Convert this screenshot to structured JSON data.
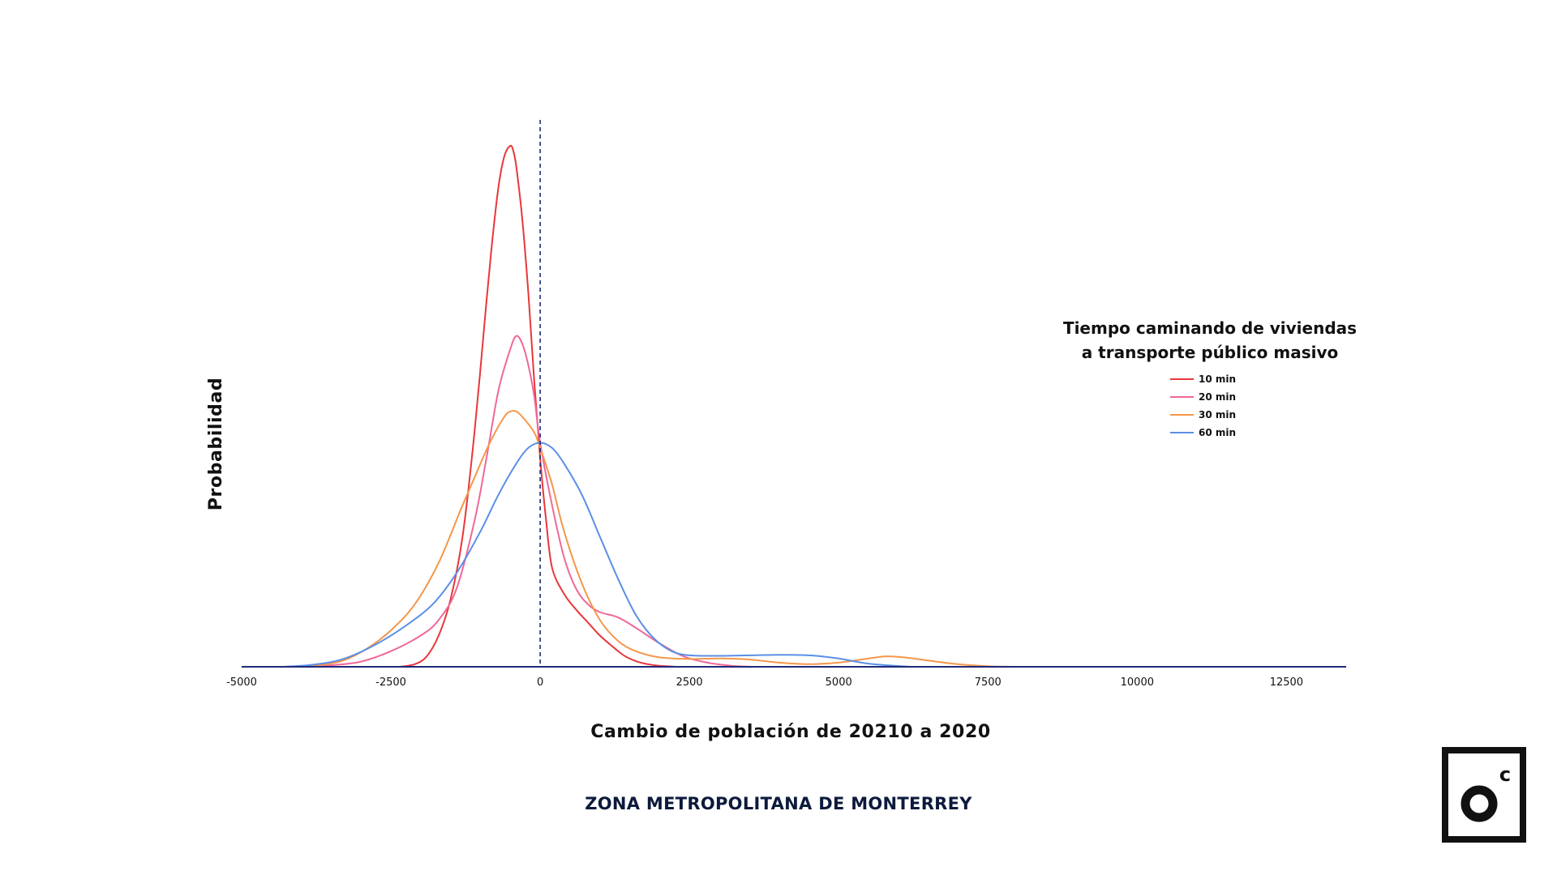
{
  "chart_data": {
    "type": "line",
    "subtype": "density",
    "xlabel": "Cambio de población de 20210 a 2020",
    "ylabel": "Probabilidad",
    "xlim": [
      -5000,
      13500
    ],
    "ylim": [
      0,
      1.0
    ],
    "xticks": [
      -5000,
      -2500,
      0,
      2500,
      5000,
      7500,
      10000,
      12500
    ],
    "xtick_labels": [
      "-5000",
      "-2500",
      "0",
      "2500",
      "5000",
      "7500",
      "10000",
      "12500"
    ],
    "reference_line": {
      "x": 0,
      "style": "dashed",
      "color": "#1f2a7a"
    },
    "grid": false,
    "legend": {
      "title_lines": [
        "Tiempo caminando de viviendas",
        "a transporte público masivo"
      ],
      "position": "right"
    },
    "series": [
      {
        "name": "10 min",
        "color": "#e8373b",
        "x": [
          -2350,
          -2100,
          -1900,
          -1700,
          -1500,
          -1300,
          -1100,
          -900,
          -800,
          -700,
          -600,
          -500,
          -450,
          -400,
          -300,
          -200,
          -100,
          0,
          100,
          200,
          400,
          600,
          800,
          1000,
          1200,
          1400,
          1600,
          1800,
          2000,
          2300
        ],
        "y": [
          0,
          0.005,
          0.02,
          0.06,
          0.13,
          0.25,
          0.45,
          0.7,
          0.82,
          0.92,
          0.98,
          1.0,
          0.99,
          0.96,
          0.86,
          0.72,
          0.55,
          0.4,
          0.28,
          0.19,
          0.14,
          0.11,
          0.085,
          0.06,
          0.04,
          0.022,
          0.011,
          0.005,
          0.002,
          0
        ]
      },
      {
        "name": "20 min",
        "color": "#f0679a",
        "x": [
          -4000,
          -3500,
          -3000,
          -2500,
          -2000,
          -1700,
          -1400,
          -1100,
          -900,
          -700,
          -500,
          -400,
          -300,
          -200,
          -100,
          0,
          200,
          400,
          600,
          800,
          1000,
          1300,
          1600,
          2000,
          2400,
          2800,
          3200,
          3550
        ],
        "y": [
          0,
          0.003,
          0.01,
          0.03,
          0.06,
          0.09,
          0.15,
          0.28,
          0.4,
          0.53,
          0.61,
          0.635,
          0.62,
          0.58,
          0.52,
          0.43,
          0.31,
          0.21,
          0.15,
          0.12,
          0.105,
          0.095,
          0.075,
          0.045,
          0.02,
          0.008,
          0.002,
          0
        ]
      },
      {
        "name": "30 min",
        "color": "#f4974a",
        "x": [
          -4100,
          -3700,
          -3300,
          -2900,
          -2500,
          -2100,
          -1700,
          -1300,
          -1000,
          -800,
          -600,
          -500,
          -400,
          -300,
          -100,
          0,
          200,
          400,
          700,
          1000,
          1300,
          1600,
          2000,
          2500,
          3000,
          3500,
          4000,
          4500,
          5000,
          5500,
          5800,
          6100,
          6500,
          7000,
          7500,
          7900
        ],
        "y": [
          0,
          0.003,
          0.012,
          0.035,
          0.07,
          0.12,
          0.2,
          0.31,
          0.39,
          0.44,
          0.48,
          0.49,
          0.49,
          0.48,
          0.45,
          0.42,
          0.35,
          0.26,
          0.16,
          0.09,
          0.05,
          0.03,
          0.018,
          0.015,
          0.016,
          0.014,
          0.008,
          0.005,
          0.008,
          0.016,
          0.02,
          0.018,
          0.012,
          0.005,
          0.001,
          0
        ]
      },
      {
        "name": "60 min",
        "color": "#5a8fe6",
        "x": [
          -4300,
          -3800,
          -3300,
          -2800,
          -2300,
          -1800,
          -1400,
          -1000,
          -700,
          -400,
          -200,
          0,
          200,
          400,
          700,
          1000,
          1300,
          1600,
          1900,
          2200,
          2500,
          3000,
          3500,
          4000,
          4500,
          5000,
          5500,
          6200
        ],
        "y": [
          0,
          0.004,
          0.015,
          0.04,
          0.075,
          0.12,
          0.18,
          0.26,
          0.33,
          0.39,
          0.42,
          0.43,
          0.42,
          0.39,
          0.33,
          0.25,
          0.17,
          0.1,
          0.055,
          0.03,
          0.022,
          0.021,
          0.022,
          0.023,
          0.022,
          0.016,
          0.006,
          0
        ]
      }
    ]
  },
  "footer": {
    "title": "ZONA METROPOLITANA DE MONTERREY"
  },
  "logo": {
    "icon": "oc-logo-icon",
    "letter_small": "c"
  }
}
